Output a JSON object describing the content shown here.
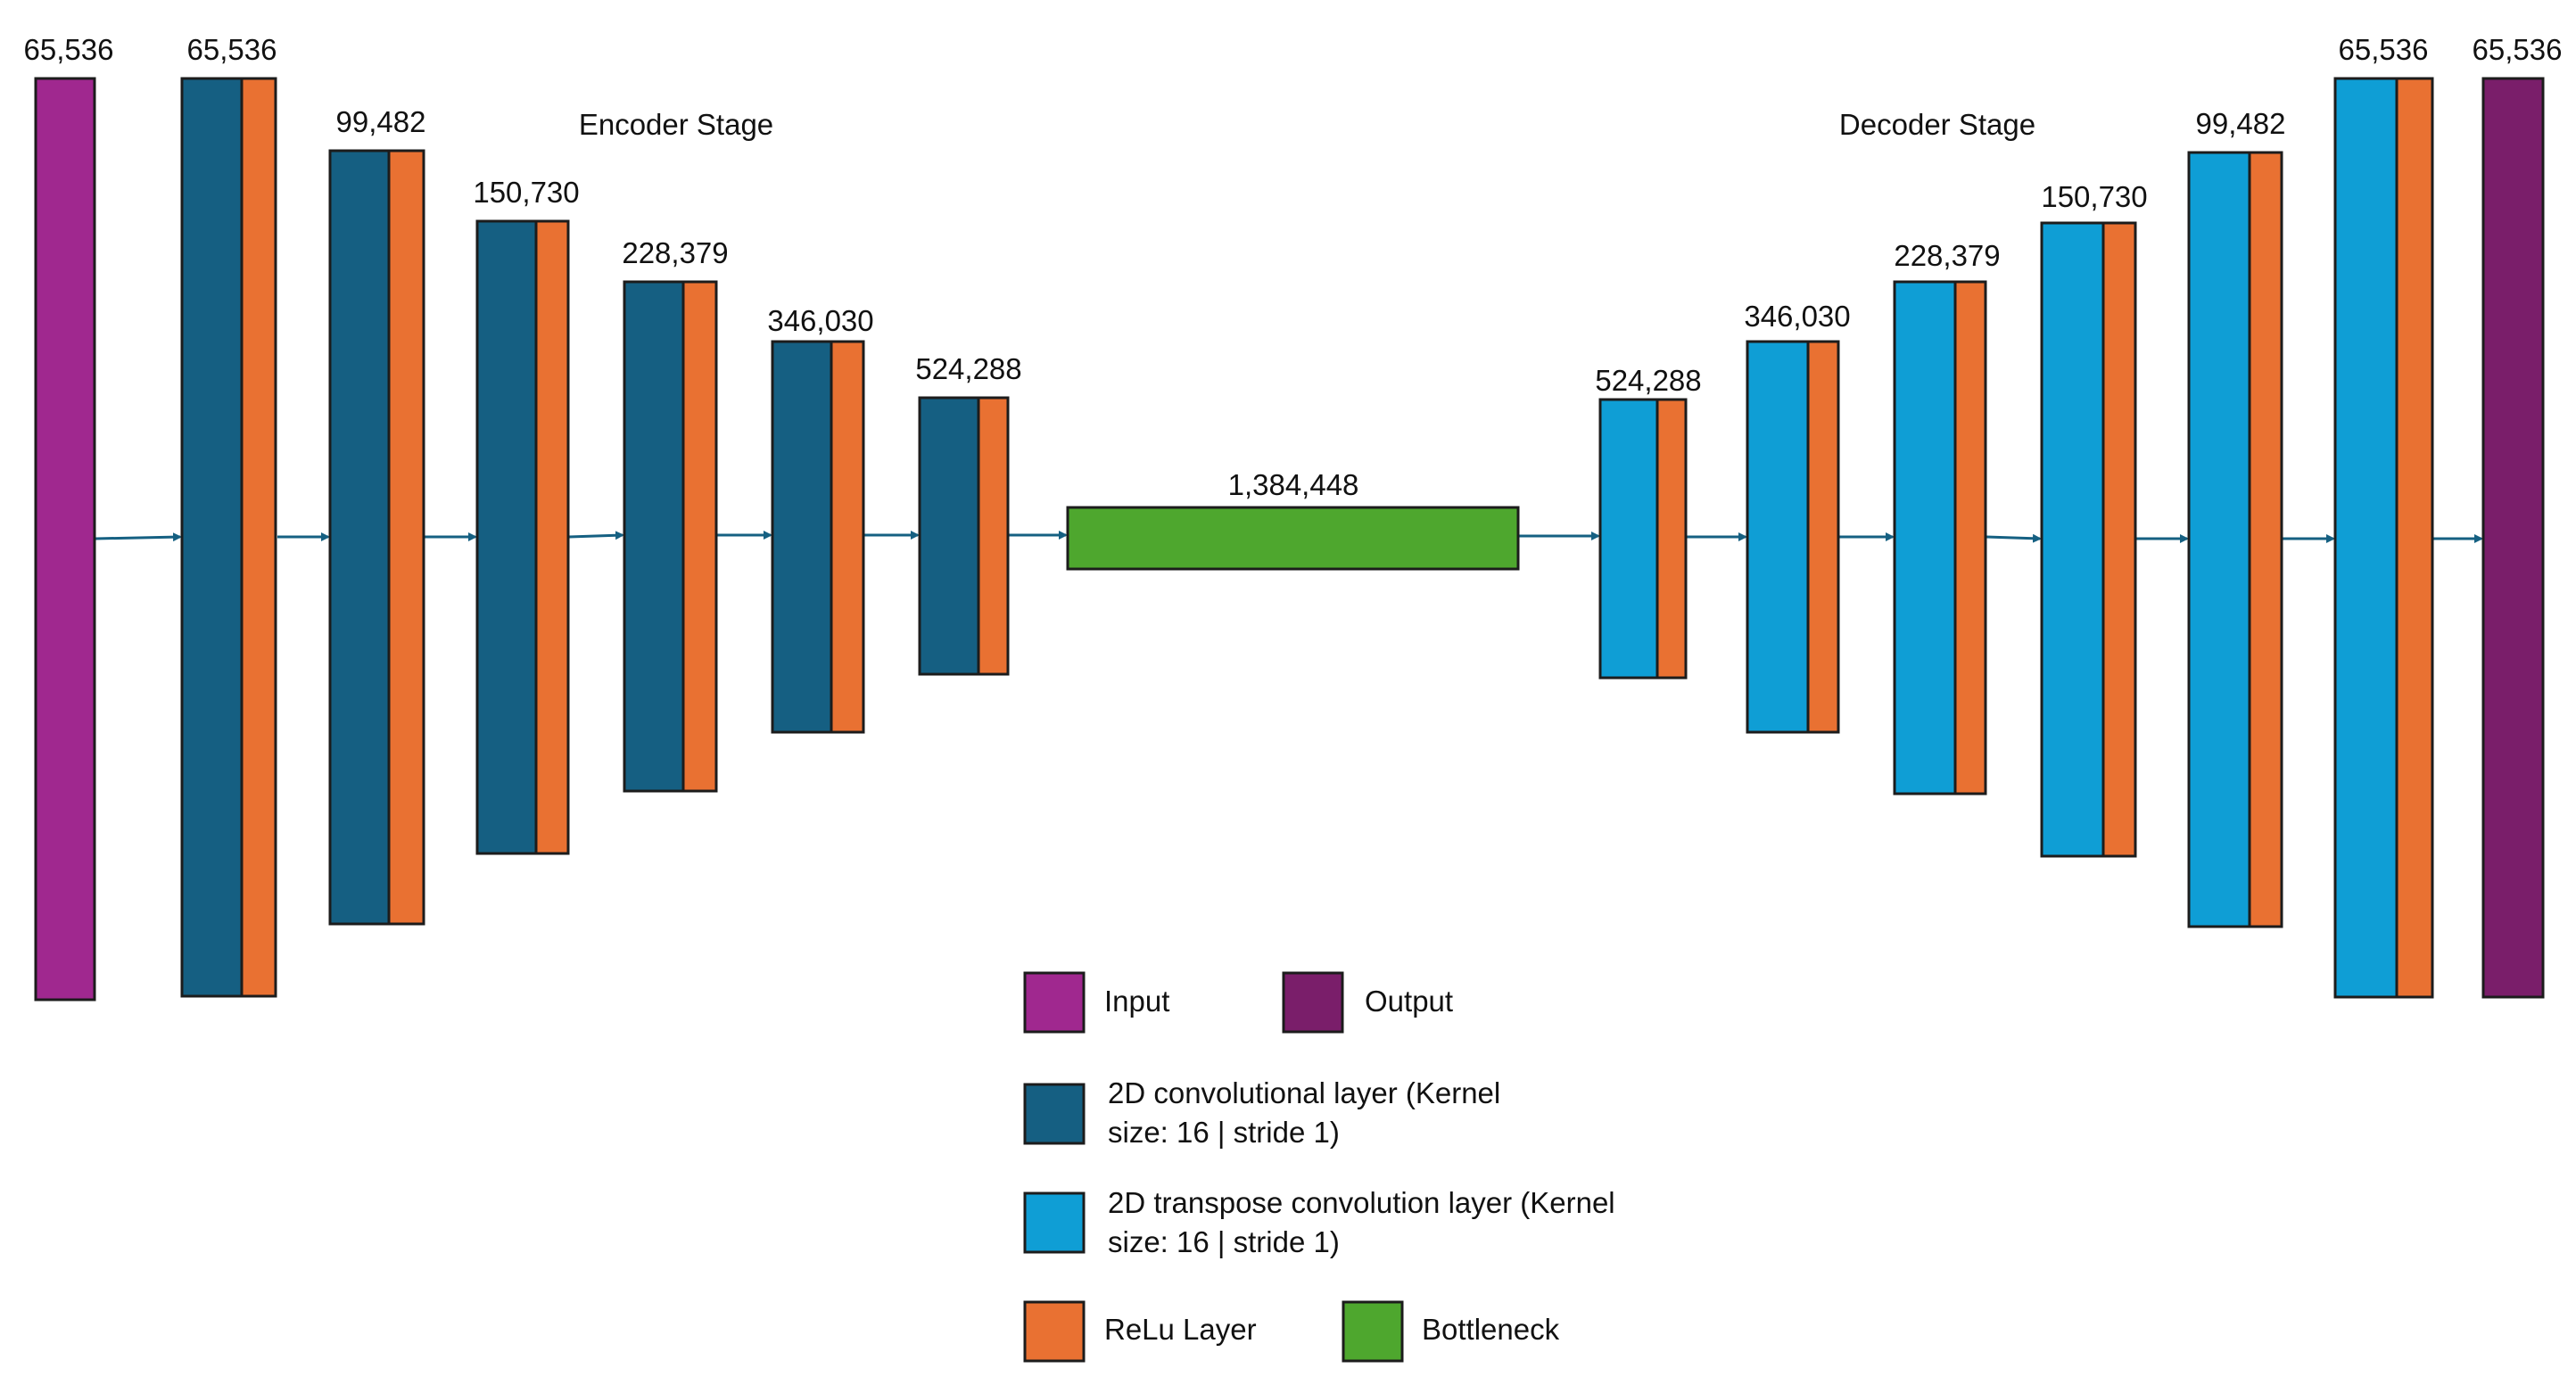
{
  "colors": {
    "input": "#A0288F",
    "output": "#7A1E6A",
    "conv": "#155F82",
    "tconv": "#0F9ED5",
    "relu": "#E97132",
    "bottleneck": "#4EA72E",
    "stroke": "#1c1c1c",
    "arrow": "#156082"
  },
  "stages": {
    "encoder": "Encoder Stage",
    "decoder": "Decoder Stage"
  },
  "layers": {
    "input": "65,536",
    "encoder": [
      "65,536",
      "99,482",
      "150,730",
      "228,379",
      "346,030",
      "524,288"
    ],
    "bottleneck": "1,384,448",
    "decoder": [
      "524,288",
      "346,030",
      "228,379",
      "150,730",
      "99,482",
      "65,536"
    ],
    "output": "65,536"
  },
  "legend": {
    "input": "Input",
    "output": "Output",
    "conv": [
      "2D convolutional layer (Kernel",
      "size: 16 | stride 1)"
    ],
    "tconv": [
      "2D transpose convolution layer (Kernel",
      "size: 16 | stride 1)"
    ],
    "relu": "ReLu Layer",
    "bottleneck": "Bottleneck"
  }
}
